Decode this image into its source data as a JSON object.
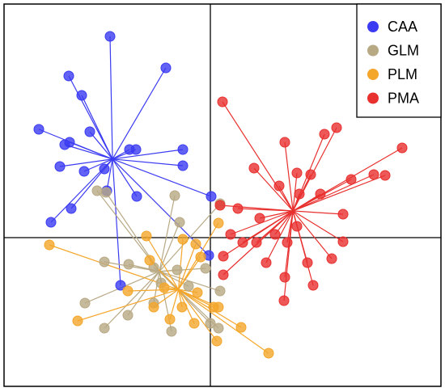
{
  "chart_data": {
    "type": "scatter",
    "legend": "top-right",
    "xlim": [
      -255,
      285
    ],
    "ylim": [
      -184,
      289
    ],
    "series": [
      {
        "name": "CAA",
        "color": "#3b3bf2",
        "x": [
          -124,
          -55,
          -175,
          -159,
          -212,
          -149,
          -174,
          -180,
          -100,
          -92,
          -34,
          -186,
          -34,
          -131,
          -156,
          -128,
          -172,
          -91,
          -197,
          1,
          -111,
          -2
        ],
        "y": [
          249,
          210,
          200,
          176,
          134,
          131,
          118,
          115,
          109,
          109,
          109,
          88,
          89,
          85,
          82,
          58,
          36,
          51,
          19,
          51,
          -59,
          -22
        ]
      },
      {
        "name": "GLM",
        "color": "#b8a985",
        "x": [
          -140,
          -129,
          -44,
          12,
          -38,
          -131,
          -101,
          -70,
          -155,
          -131,
          -102,
          -70,
          -48,
          -6,
          12,
          0,
          10,
          -27,
          -61,
          -41
        ],
        "y": [
          58,
          56,
          52,
          42,
          19,
          -30,
          -33,
          -37,
          -81,
          -112,
          -96,
          -81,
          -116,
          -38,
          -66,
          -106,
          -112,
          -60,
          -56,
          -40
        ]
      },
      {
        "name": "PLM",
        "color": "#f4a62a",
        "x": [
          -199,
          -164,
          -79,
          -34,
          -75,
          -18,
          -12,
          10,
          -102,
          -57,
          -50,
          -20,
          38,
          72,
          8,
          10,
          -70,
          -16,
          -35,
          4
        ],
        "y": [
          -9,
          -103,
          2,
          -2,
          -28,
          -8,
          -24,
          18,
          -66,
          -62,
          -101,
          -106,
          -111,
          -143,
          -128,
          -86,
          -86,
          -68,
          -86,
          -86
        ]
      },
      {
        "name": "PMA",
        "color": "#e8302e",
        "x": [
          15,
          92,
          156,
          141,
          237,
          54,
          107,
          124,
          174,
          202,
          216,
          12,
          34,
          61,
          110,
          136,
          164,
          25,
          40,
          16,
          69,
          92,
          127,
          150,
          164,
          91,
          16,
          120,
          85,
          95,
          107,
          80,
          57
        ],
        "y": [
          168,
          118,
          136,
          128,
          111,
          86,
          80,
          78,
          72,
          78,
          77,
          40,
          36,
          24,
          54,
          54,
          29,
          4,
          -6,
          -23,
          -31,
          -49,
          -59,
          -26,
          -5,
          -78,
          -46,
          -31,
          64,
          -6,
          14,
          4,
          -6
        ]
      }
    ]
  }
}
